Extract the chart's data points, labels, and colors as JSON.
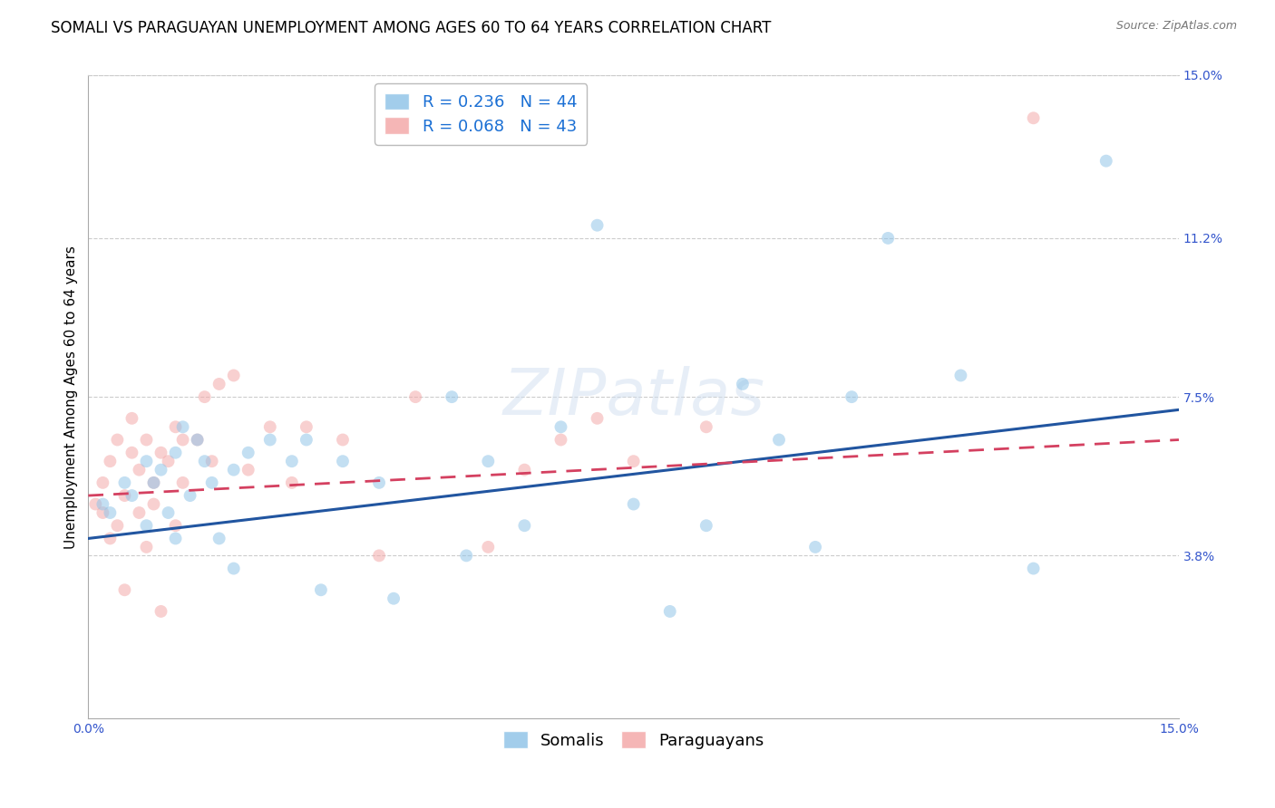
{
  "title": "SOMALI VS PARAGUAYAN UNEMPLOYMENT AMONG AGES 60 TO 64 YEARS CORRELATION CHART",
  "source": "Source: ZipAtlas.com",
  "ylabel": "Unemployment Among Ages 60 to 64 years",
  "xlim": [
    0.0,
    0.15
  ],
  "ylim": [
    0.0,
    0.15
  ],
  "ytick_labels": [
    "15.0%",
    "11.2%",
    "7.5%",
    "3.8%"
  ],
  "ytick_values": [
    0.15,
    0.112,
    0.075,
    0.038
  ],
  "somali_R": 0.236,
  "somali_N": 44,
  "paraguayan_R": 0.068,
  "paraguayan_N": 43,
  "somali_color": "#92C5E8",
  "paraguayan_color": "#F4AAAA",
  "somali_line_color": "#2155A0",
  "paraguayan_line_color": "#D44060",
  "legend_r_color": "#1a6fd4",
  "legend_n_color": "#1a1a80",
  "background_color": "#ffffff",
  "grid_color": "#cccccc",
  "somali_x": [
    0.002,
    0.003,
    0.005,
    0.006,
    0.008,
    0.008,
    0.009,
    0.01,
    0.011,
    0.012,
    0.012,
    0.013,
    0.014,
    0.015,
    0.016,
    0.017,
    0.018,
    0.02,
    0.02,
    0.022,
    0.025,
    0.028,
    0.03,
    0.032,
    0.035,
    0.04,
    0.042,
    0.05,
    0.052,
    0.055,
    0.06,
    0.065,
    0.07,
    0.075,
    0.08,
    0.085,
    0.09,
    0.095,
    0.1,
    0.105,
    0.11,
    0.12,
    0.13,
    0.14
  ],
  "somali_y": [
    0.05,
    0.048,
    0.055,
    0.052,
    0.045,
    0.06,
    0.055,
    0.058,
    0.048,
    0.062,
    0.042,
    0.068,
    0.052,
    0.065,
    0.06,
    0.055,
    0.042,
    0.058,
    0.035,
    0.062,
    0.065,
    0.06,
    0.065,
    0.03,
    0.06,
    0.055,
    0.028,
    0.075,
    0.038,
    0.06,
    0.045,
    0.068,
    0.115,
    0.05,
    0.025,
    0.045,
    0.078,
    0.065,
    0.04,
    0.075,
    0.112,
    0.08,
    0.035,
    0.13
  ],
  "paraguayan_x": [
    0.001,
    0.002,
    0.002,
    0.003,
    0.003,
    0.004,
    0.004,
    0.005,
    0.005,
    0.006,
    0.006,
    0.007,
    0.007,
    0.008,
    0.008,
    0.009,
    0.009,
    0.01,
    0.01,
    0.011,
    0.012,
    0.012,
    0.013,
    0.013,
    0.015,
    0.016,
    0.017,
    0.018,
    0.02,
    0.022,
    0.025,
    0.028,
    0.03,
    0.035,
    0.04,
    0.045,
    0.055,
    0.06,
    0.065,
    0.07,
    0.075,
    0.085,
    0.13
  ],
  "paraguayan_y": [
    0.05,
    0.055,
    0.048,
    0.06,
    0.042,
    0.065,
    0.045,
    0.052,
    0.03,
    0.062,
    0.07,
    0.048,
    0.058,
    0.04,
    0.065,
    0.055,
    0.05,
    0.062,
    0.025,
    0.06,
    0.068,
    0.045,
    0.065,
    0.055,
    0.065,
    0.075,
    0.06,
    0.078,
    0.08,
    0.058,
    0.068,
    0.055,
    0.068,
    0.065,
    0.038,
    0.075,
    0.04,
    0.058,
    0.065,
    0.07,
    0.06,
    0.068,
    0.14
  ],
  "somali_line_x": [
    0.0,
    0.15
  ],
  "somali_line_y": [
    0.042,
    0.072
  ],
  "paraguayan_line_x": [
    0.0,
    0.15
  ],
  "paraguayan_line_y": [
    0.052,
    0.065
  ],
  "marker_size": 100,
  "alpha": 0.55,
  "title_fontsize": 12,
  "axis_label_fontsize": 11,
  "tick_fontsize": 10,
  "legend_fontsize": 13
}
